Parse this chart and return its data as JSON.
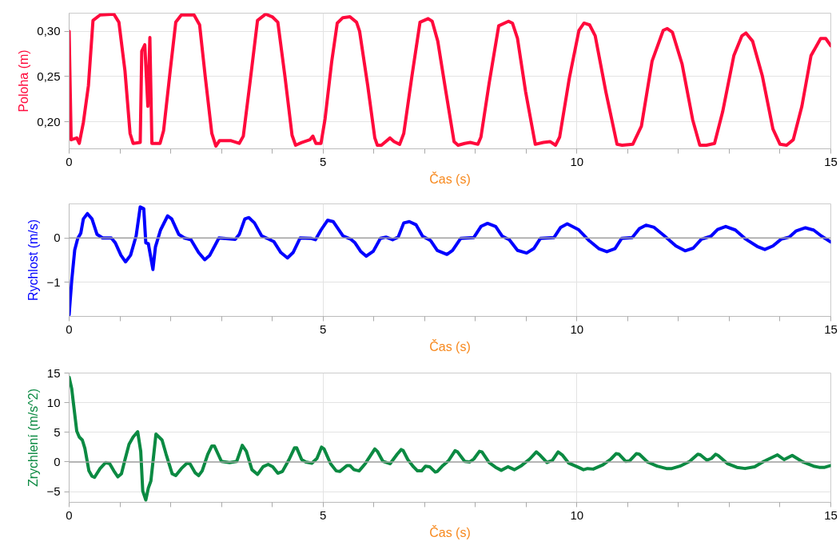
{
  "chart_data": [
    {
      "type": "line",
      "xlabel": "Čas (s)",
      "ylabel": "Poloha (m)",
      "xlim": [
        0,
        15
      ],
      "ylim": [
        0.17,
        0.32
      ],
      "grid": true,
      "xticks": [
        0,
        {
          "value": 1,
          "label": null
        },
        {
          "value": 2,
          "label": null
        },
        {
          "value": 3,
          "label": null
        },
        {
          "value": 4,
          "label": null
        },
        5,
        {
          "value": 6,
          "label": null
        },
        {
          "value": 7,
          "label": null
        },
        {
          "value": 8,
          "label": null
        },
        {
          "value": 9,
          "label": null
        },
        10,
        {
          "value": 11,
          "label": null
        },
        {
          "value": 12,
          "label": null
        },
        {
          "value": 13,
          "label": null
        },
        {
          "value": 14,
          "label": null
        },
        15
      ],
      "yticks": [
        {
          "value": 0.2,
          "label": "0,20"
        },
        {
          "value": 0.25,
          "label": "0,25"
        },
        {
          "value": 0.3,
          "label": "0,30"
        }
      ],
      "series": [
        {
          "color": "#ff0a3c",
          "x": [
            0,
            0.04,
            0.15,
            0.2,
            0.28,
            0.38,
            0.47,
            0.61,
            0.88,
            0.98,
            1.1,
            1.2,
            1.26,
            1.4,
            1.43,
            1.49,
            1.55,
            1.59,
            1.63,
            1.79,
            1.86,
            1.99,
            2.1,
            2.21,
            2.46,
            2.57,
            2.68,
            2.81,
            2.89,
            2.96,
            3.19,
            3.35,
            3.43,
            3.57,
            3.71,
            3.87,
            4.0,
            4.11,
            4.25,
            4.39,
            4.46,
            4.58,
            4.74,
            4.8,
            4.86,
            4.96,
            5.04,
            5.17,
            5.28,
            5.39,
            5.53,
            5.66,
            5.72,
            5.88,
            6.02,
            6.07,
            6.15,
            6.32,
            6.4,
            6.51,
            6.59,
            6.75,
            6.91,
            7.07,
            7.15,
            7.26,
            7.42,
            7.58,
            7.66,
            7.79,
            7.9,
            8.05,
            8.11,
            8.27,
            8.46,
            8.65,
            8.73,
            8.83,
            8.99,
            9.18,
            9.34,
            9.47,
            9.58,
            9.66,
            9.85,
            10.04,
            10.14,
            10.25,
            10.36,
            10.57,
            10.79,
            10.89,
            11.1,
            11.27,
            11.48,
            11.7,
            11.78,
            11.88,
            12.07,
            12.28,
            12.42,
            12.55,
            12.71,
            12.87,
            13.09,
            13.25,
            13.33,
            13.46,
            13.65,
            13.86,
            14.0,
            14.13,
            14.26,
            14.43,
            14.61,
            14.8,
            14.9,
            15.0
          ],
          "values": [
            0.3,
            0.18,
            0.182,
            0.176,
            0.199,
            0.24,
            0.312,
            0.318,
            0.319,
            0.31,
            0.256,
            0.187,
            0.176,
            0.177,
            0.278,
            0.285,
            0.217,
            0.293,
            0.176,
            0.176,
            0.19,
            0.256,
            0.31,
            0.318,
            0.318,
            0.307,
            0.25,
            0.187,
            0.173,
            0.179,
            0.179,
            0.176,
            0.184,
            0.247,
            0.312,
            0.319,
            0.316,
            0.31,
            0.25,
            0.185,
            0.174,
            0.177,
            0.18,
            0.184,
            0.176,
            0.176,
            0.203,
            0.266,
            0.309,
            0.315,
            0.316,
            0.31,
            0.3,
            0.24,
            0.182,
            0.174,
            0.174,
            0.182,
            0.178,
            0.175,
            0.187,
            0.25,
            0.31,
            0.314,
            0.311,
            0.289,
            0.233,
            0.178,
            0.174,
            0.176,
            0.177,
            0.175,
            0.183,
            0.242,
            0.306,
            0.311,
            0.309,
            0.292,
            0.233,
            0.175,
            0.177,
            0.178,
            0.174,
            0.183,
            0.248,
            0.301,
            0.309,
            0.307,
            0.295,
            0.233,
            0.175,
            0.174,
            0.175,
            0.195,
            0.267,
            0.301,
            0.303,
            0.299,
            0.264,
            0.202,
            0.174,
            0.174,
            0.176,
            0.211,
            0.273,
            0.295,
            0.298,
            0.289,
            0.251,
            0.192,
            0.175,
            0.174,
            0.18,
            0.217,
            0.273,
            0.292,
            0.292,
            0.284
          ]
        }
      ]
    },
    {
      "type": "line",
      "xlabel": "Čas (s)",
      "ylabel": "Rychlost (m/s)",
      "xlim": [
        0,
        15
      ],
      "ylim": [
        -1.77,
        0.77
      ],
      "grid": true,
      "xticks": [
        0,
        {
          "value": 1,
          "label": null
        },
        {
          "value": 2,
          "label": null
        },
        {
          "value": 3,
          "label": null
        },
        {
          "value": 4,
          "label": null
        },
        5,
        {
          "value": 6,
          "label": null
        },
        {
          "value": 7,
          "label": null
        },
        {
          "value": 8,
          "label": null
        },
        {
          "value": 9,
          "label": null
        },
        10,
        {
          "value": 11,
          "label": null
        },
        {
          "value": 12,
          "label": null
        },
        {
          "value": 13,
          "label": null
        },
        {
          "value": 14,
          "label": null
        },
        15
      ],
      "yticks": [
        -1,
        0
      ],
      "ref_lines": [
        {
          "axis": "y",
          "value": 0,
          "color": "#a0a0a0"
        }
      ],
      "series": [
        {
          "color": "#0000ff",
          "x": [
            0,
            0.05,
            0.11,
            0.17,
            0.23,
            0.28,
            0.36,
            0.45,
            0.55,
            0.66,
            0.83,
            0.91,
            1.02,
            1.11,
            1.21,
            1.32,
            1.4,
            1.47,
            1.51,
            1.56,
            1.65,
            1.7,
            1.8,
            1.94,
            2.02,
            2.16,
            2.27,
            2.4,
            2.55,
            2.67,
            2.77,
            2.95,
            3.27,
            3.35,
            3.46,
            3.54,
            3.65,
            3.79,
            3.9,
            4.03,
            4.17,
            4.3,
            4.41,
            4.55,
            4.77,
            4.85,
            4.96,
            5.09,
            5.2,
            5.39,
            5.55,
            5.63,
            5.74,
            5.85,
            5.99,
            6.13,
            6.24,
            6.37,
            6.48,
            6.59,
            6.7,
            6.83,
            6.96,
            7.12,
            7.25,
            7.44,
            7.55,
            7.71,
            7.97,
            8.11,
            8.24,
            8.4,
            8.53,
            8.67,
            8.83,
            9.01,
            9.15,
            9.28,
            9.55,
            9.68,
            9.81,
            10.03,
            10.24,
            10.43,
            10.59,
            10.75,
            10.88,
            11.09,
            11.23,
            11.36,
            11.52,
            11.73,
            11.95,
            12.13,
            12.29,
            12.45,
            12.64,
            12.77,
            12.93,
            13.12,
            13.33,
            13.55,
            13.7,
            13.86,
            14.02,
            14.18,
            14.32,
            14.5,
            14.66,
            14.82,
            15.0
          ],
          "values": [
            -1.73,
            -0.97,
            -0.27,
            -0.01,
            0.11,
            0.43,
            0.55,
            0.43,
            0.08,
            0,
            0,
            -0.11,
            -0.39,
            -0.54,
            -0.39,
            0.05,
            0.7,
            0.66,
            -0.11,
            -0.13,
            -0.71,
            -0.2,
            0.18,
            0.5,
            0.43,
            0.08,
            0,
            -0.04,
            -0.33,
            -0.49,
            -0.39,
            0,
            -0.03,
            0.08,
            0.43,
            0.46,
            0.34,
            0.05,
            -0.01,
            -0.08,
            -0.33,
            -0.45,
            -0.33,
            0,
            -0.01,
            -0.04,
            0.18,
            0.4,
            0.37,
            0.05,
            -0.03,
            -0.11,
            -0.3,
            -0.41,
            -0.3,
            -0.01,
            0.02,
            -0.04,
            0.02,
            0.34,
            0.37,
            0.3,
            0.04,
            -0.06,
            -0.28,
            -0.37,
            -0.28,
            -0.01,
            0.01,
            0.26,
            0.33,
            0.26,
            0.04,
            -0.04,
            -0.28,
            -0.34,
            -0.24,
            -0.01,
            0.01,
            0.24,
            0.32,
            0.19,
            -0.06,
            -0.24,
            -0.31,
            -0.24,
            -0.01,
            0.01,
            0.21,
            0.29,
            0.24,
            0.04,
            -0.18,
            -0.29,
            -0.23,
            -0.03,
            0.04,
            0.19,
            0.26,
            0.18,
            -0.03,
            -0.19,
            -0.26,
            -0.18,
            -0.03,
            0.02,
            0.16,
            0.23,
            0.18,
            0.04,
            -0.09
          ]
        }
      ]
    },
    {
      "type": "line",
      "xlabel": "Čas (s)",
      "ylabel": "Zrychlení (m/s^2)",
      "xlim": [
        0,
        15
      ],
      "ylim": [
        -6.8,
        15
      ],
      "grid": true,
      "xticks": [
        0,
        {
          "value": 1,
          "label": null
        },
        {
          "value": 2,
          "label": null
        },
        {
          "value": 3,
          "label": null
        },
        {
          "value": 4,
          "label": null
        },
        5,
        {
          "value": 6,
          "label": null
        },
        {
          "value": 7,
          "label": null
        },
        {
          "value": 8,
          "label": null
        },
        {
          "value": 9,
          "label": null
        },
        10,
        {
          "value": 11,
          "label": null
        },
        {
          "value": 12,
          "label": null
        },
        {
          "value": 13,
          "label": null
        },
        {
          "value": 14,
          "label": null
        },
        15
      ],
      "yticks": [
        -5,
        0,
        5,
        10,
        15
      ],
      "ref_lines": [
        {
          "axis": "y",
          "value": 0,
          "color": "#a0a0a0"
        }
      ],
      "series": [
        {
          "color": "#0b8a42",
          "x": [
            0,
            0.05,
            0.15,
            0.2,
            0.26,
            0.31,
            0.39,
            0.45,
            0.5,
            0.61,
            0.72,
            0.8,
            0.88,
            0.96,
            1.03,
            1.1,
            1.18,
            1.26,
            1.35,
            1.41,
            1.45,
            1.51,
            1.56,
            1.61,
            1.71,
            1.83,
            1.91,
            2.03,
            2.1,
            2.21,
            2.32,
            2.38,
            2.48,
            2.55,
            2.62,
            2.73,
            2.81,
            2.86,
            3.0,
            3.16,
            3.3,
            3.41,
            3.49,
            3.6,
            3.71,
            3.82,
            3.92,
            4.01,
            4.11,
            4.2,
            4.33,
            4.44,
            4.48,
            4.58,
            4.66,
            4.78,
            4.88,
            4.97,
            5.02,
            5.15,
            5.26,
            5.33,
            5.47,
            5.53,
            5.61,
            5.71,
            5.83,
            6.02,
            6.07,
            6.18,
            6.32,
            6.46,
            6.54,
            6.58,
            6.67,
            6.78,
            6.86,
            6.94,
            7.02,
            7.1,
            7.21,
            7.25,
            7.36,
            7.47,
            7.6,
            7.65,
            7.79,
            7.89,
            7.97,
            8.08,
            8.13,
            8.27,
            8.4,
            8.51,
            8.64,
            8.77,
            8.91,
            9.07,
            9.2,
            9.28,
            9.41,
            9.52,
            9.63,
            9.71,
            9.84,
            10.03,
            10.13,
            10.21,
            10.32,
            10.51,
            10.67,
            10.77,
            10.83,
            10.96,
            11.04,
            11.17,
            11.23,
            11.39,
            11.58,
            11.76,
            11.87,
            12.03,
            12.22,
            12.38,
            12.43,
            12.56,
            12.65,
            12.73,
            12.78,
            12.97,
            13.15,
            13.31,
            13.5,
            13.68,
            13.95,
            14.0,
            14.08,
            14.24,
            14.45,
            14.66,
            14.77,
            14.88,
            15.0
          ],
          "values": [
            14.3,
            12.4,
            5.2,
            4.2,
            3.7,
            2.3,
            -1.5,
            -2.4,
            -2.6,
            -1.1,
            -0.1,
            -0.3,
            -1.5,
            -2.5,
            -2.0,
            0.4,
            3.0,
            4.2,
            5.1,
            1.8,
            -4.9,
            -6.4,
            -4.4,
            -3.2,
            4.7,
            3.7,
            1.3,
            -2.0,
            -2.3,
            -1.1,
            -0.2,
            -0.3,
            -1.8,
            -2.3,
            -1.5,
            1.3,
            2.7,
            2.7,
            0.1,
            -0.1,
            0.1,
            2.8,
            1.8,
            -1.3,
            -2.1,
            -0.8,
            -0.4,
            -0.8,
            -1.9,
            -1.6,
            0.4,
            2.4,
            2.4,
            0.4,
            0,
            -0.2,
            0.6,
            2.5,
            2.2,
            -0.3,
            -1.5,
            -1.6,
            -0.6,
            -0.6,
            -1.3,
            -1.5,
            -0.3,
            2.2,
            1.8,
            0.1,
            -0.3,
            1.3,
            2.1,
            1.9,
            0.4,
            -0.8,
            -1.5,
            -1.5,
            -0.7,
            -0.8,
            -1.7,
            -1.6,
            -0.6,
            0.2,
            1.9,
            1.7,
            0.1,
            0,
            0.5,
            1.8,
            1.7,
            -0.1,
            -0.9,
            -1.4,
            -0.8,
            -1.3,
            -0.6,
            0.5,
            1.7,
            1.1,
            -0.1,
            0.3,
            1.7,
            1.2,
            -0.2,
            -0.9,
            -1.3,
            -1.1,
            -1.2,
            -0.5,
            0.5,
            1.4,
            1.3,
            0.1,
            0.2,
            1.4,
            1.3,
            0,
            -0.7,
            -1.1,
            -1.1,
            -0.7,
            0.1,
            1.3,
            1.2,
            0.3,
            0.6,
            1.3,
            1.1,
            -0.3,
            -0.9,
            -1.1,
            -0.8,
            0.1,
            1.2,
            0.9,
            0.4,
            1.1,
            0,
            -0.7,
            -0.9,
            -0.9,
            -0.6
          ]
        }
      ]
    }
  ]
}
